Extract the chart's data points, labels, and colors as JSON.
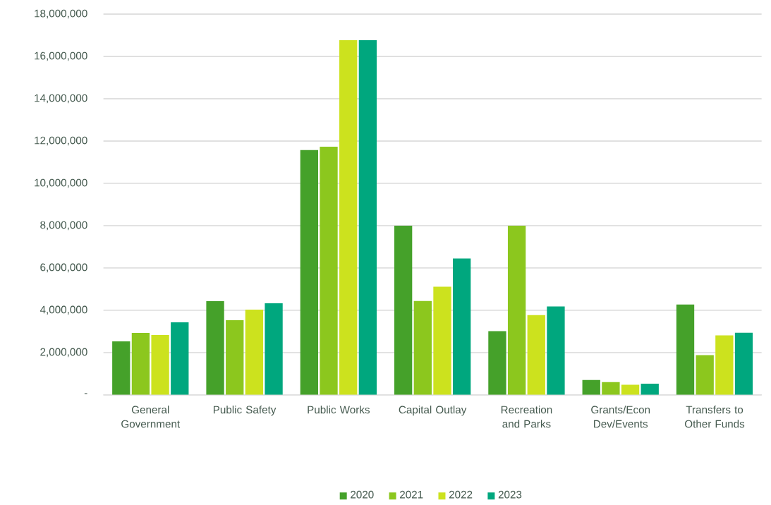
{
  "chart_data": {
    "type": "bar",
    "categories": [
      "General Government",
      "Public Safety",
      "Public Works",
      "Capital Outlay",
      "Recreation and Parks",
      "Grants/Econ Dev/Events",
      "Transfers to Other Funds"
    ],
    "series": [
      {
        "name": "2020",
        "color": "#45a12a",
        "values": [
          2530000,
          4430000,
          11570000,
          8000000,
          3010000,
          700000,
          4270000
        ]
      },
      {
        "name": "2021",
        "color": "#8cc71e",
        "values": [
          2930000,
          3530000,
          11730000,
          4440000,
          8000000,
          600000,
          1880000
        ]
      },
      {
        "name": "2022",
        "color": "#cce21e",
        "values": [
          2830000,
          4030000,
          16770000,
          5110000,
          3770000,
          480000,
          2810000
        ]
      },
      {
        "name": "2023",
        "color": "#00a77e",
        "values": [
          3430000,
          4330000,
          16770000,
          6450000,
          4180000,
          530000,
          2940000
        ]
      }
    ],
    "ylim": [
      0,
      18000000
    ],
    "yticks": [
      {
        "value": 0,
        "label": "-"
      },
      {
        "value": 2000000,
        "label": "2,000,000"
      },
      {
        "value": 4000000,
        "label": "4,000,000"
      },
      {
        "value": 6000000,
        "label": "6,000,000"
      },
      {
        "value": 8000000,
        "label": "8,000,000"
      },
      {
        "value": 10000000,
        "label": "10,000,000"
      },
      {
        "value": 12000000,
        "label": "12,000,000"
      },
      {
        "value": 14000000,
        "label": "14,000,000"
      },
      {
        "value": 16000000,
        "label": "16,000,000"
      },
      {
        "value": 18000000,
        "label": "18,000,000"
      }
    ],
    "grid": "y",
    "legend": "bottom"
  }
}
